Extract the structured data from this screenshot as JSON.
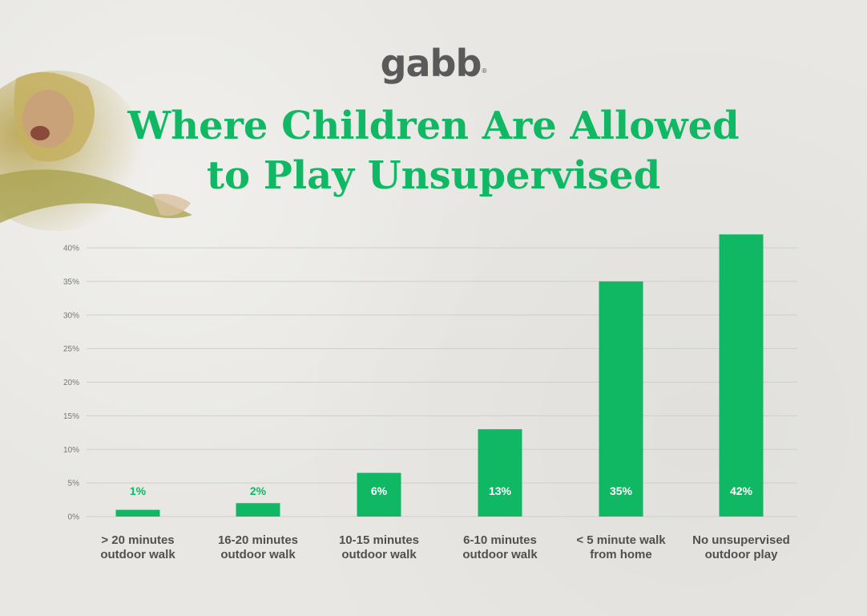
{
  "brand": {
    "logo_text": "gabb",
    "logo_mark": "®"
  },
  "colors": {
    "accent": "#10b864",
    "grid": "#cfcfca",
    "label": "#505050"
  },
  "chart_data": {
    "type": "bar",
    "title": "Where Children Are Allowed to Play Unsupervised",
    "title_lines": [
      "Where Children Are Allowed",
      "to Play Unsupervised"
    ],
    "categories": [
      [
        "> 20 minutes",
        "outdoor walk"
      ],
      [
        "16-20 minutes",
        "outdoor walk"
      ],
      [
        "10-15 minutes",
        "outdoor walk"
      ],
      [
        "6-10 minutes",
        "outdoor walk"
      ],
      [
        "< 5 minute walk",
        "from home"
      ],
      [
        "No unsupervised",
        "outdoor play"
      ]
    ],
    "values": [
      1,
      2,
      6.5,
      13,
      35,
      42
    ],
    "data_labels": [
      "1%",
      "2%",
      "6%",
      "13%",
      "35%",
      "42%"
    ],
    "yticks": [
      "0%",
      "5%",
      "10%",
      "15%",
      "20%",
      "25%",
      "30%",
      "35%",
      "40%"
    ],
    "ylim": [
      0,
      40
    ],
    "grid": true,
    "legend": "none"
  }
}
